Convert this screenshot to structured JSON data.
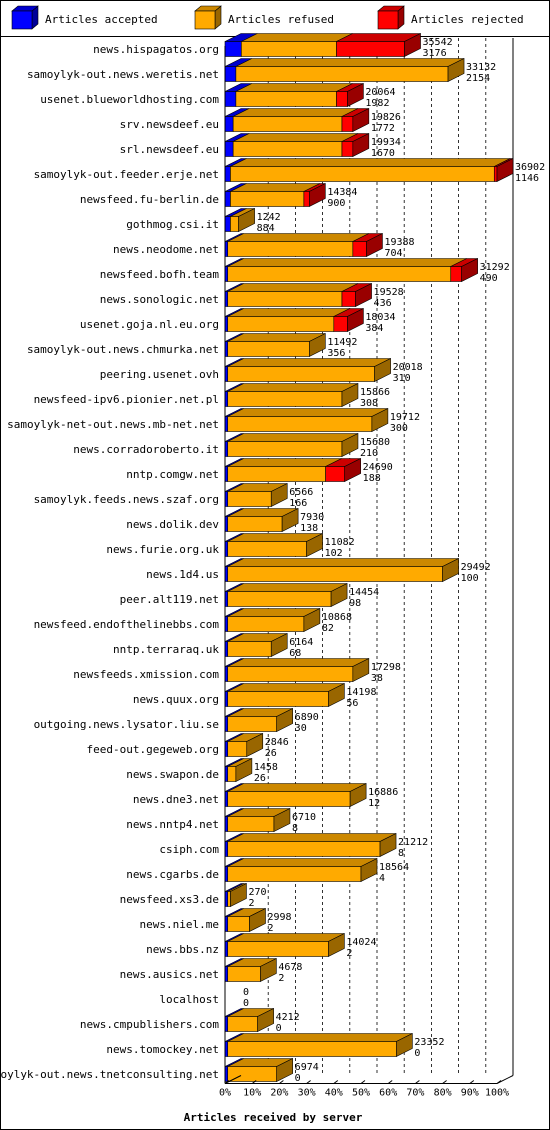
{
  "chart_data": {
    "type": "bar",
    "stacked": true,
    "orientation": "horizontal",
    "title": "Articles received by server",
    "legend_position": "top",
    "series": [
      {
        "name": "Articles accepted",
        "color": "#0000ff"
      },
      {
        "name": "Articles refused",
        "color": "#ffaa00"
      },
      {
        "name": "Articles rejected",
        "color": "#ff0000"
      }
    ],
    "x_ticks": [
      "0%",
      "10%",
      "20%",
      "30%",
      "40%",
      "50%",
      "60%",
      "70%",
      "80%",
      "90%",
      "100%"
    ],
    "xlim": [
      0,
      100
    ],
    "grid": "vertical dashed",
    "rows": [
      {
        "server": "news.hispagatos.org",
        "total": "35542",
        "second": "3176",
        "accepted_pct": 6,
        "refused_pct": 35,
        "rejected_pct": 25
      },
      {
        "server": "samoylyk-out.news.weretis.net",
        "total": "33132",
        "second": "2154",
        "accepted_pct": 4,
        "refused_pct": 78,
        "rejected_pct": 0
      },
      {
        "server": "usenet.blueworldhosting.com",
        "total": "20064",
        "second": "1982",
        "accepted_pct": 4,
        "refused_pct": 37,
        "rejected_pct": 4
      },
      {
        "server": "srv.newsdeef.eu",
        "total": "19826",
        "second": "1772",
        "accepted_pct": 3,
        "refused_pct": 40,
        "rejected_pct": 4
      },
      {
        "server": "srl.newsdeef.eu",
        "total": "19934",
        "second": "1670",
        "accepted_pct": 3,
        "refused_pct": 40,
        "rejected_pct": 4
      },
      {
        "server": "samoylyk-out.feeder.erje.net",
        "total": "36902",
        "second": "1146",
        "accepted_pct": 2,
        "refused_pct": 97,
        "rejected_pct": 1
      },
      {
        "server": "newsfeed.fu-berlin.de",
        "total": "14384",
        "second": "900",
        "accepted_pct": 2,
        "refused_pct": 27,
        "rejected_pct": 2
      },
      {
        "server": "gothmog.csi.it",
        "total": "1242",
        "second": "884",
        "accepted_pct": 2,
        "refused_pct": 3,
        "rejected_pct": 0
      },
      {
        "server": "news.neodome.net",
        "total": "19388",
        "second": "704",
        "accepted_pct": 1,
        "refused_pct": 46,
        "rejected_pct": 5
      },
      {
        "server": "newsfeed.bofh.team",
        "total": "31292",
        "second": "490",
        "accepted_pct": 1,
        "refused_pct": 82,
        "rejected_pct": 4
      },
      {
        "server": "news.sonologic.net",
        "total": "19528",
        "second": "436",
        "accepted_pct": 1,
        "refused_pct": 42,
        "rejected_pct": 5
      },
      {
        "server": "usenet.goja.nl.eu.org",
        "total": "18034",
        "second": "384",
        "accepted_pct": 1,
        "refused_pct": 39,
        "rejected_pct": 5
      },
      {
        "server": "samoylyk-out.news.chmurka.net",
        "total": "11492",
        "second": "356",
        "accepted_pct": 1,
        "refused_pct": 30,
        "rejected_pct": 0
      },
      {
        "server": "peering.usenet.ovh",
        "total": "20018",
        "second": "310",
        "accepted_pct": 1,
        "refused_pct": 54,
        "rejected_pct": 0
      },
      {
        "server": "newsfeed-ipv6.pionier.net.pl",
        "total": "15866",
        "second": "308",
        "accepted_pct": 1,
        "refused_pct": 42,
        "rejected_pct": 0
      },
      {
        "server": "samoylyk-net-out.news.mb-net.net",
        "total": "19712",
        "second": "300",
        "accepted_pct": 1,
        "refused_pct": 53,
        "rejected_pct": 0
      },
      {
        "server": "news.corradoroberto.it",
        "total": "15680",
        "second": "210",
        "accepted_pct": 1,
        "refused_pct": 42,
        "rejected_pct": 0
      },
      {
        "server": "nntp.comgw.net",
        "total": "24690",
        "second": "188",
        "accepted_pct": 1,
        "refused_pct": 36,
        "rejected_pct": 7
      },
      {
        "server": "samoylyk.feeds.news.szaf.org",
        "total": "6566",
        "second": "166",
        "accepted_pct": 1,
        "refused_pct": 16,
        "rejected_pct": 0
      },
      {
        "server": "news.dolik.dev",
        "total": "7930",
        "second": "138",
        "accepted_pct": 1,
        "refused_pct": 20,
        "rejected_pct": 0
      },
      {
        "server": "news.furie.org.uk",
        "total": "11082",
        "second": "102",
        "accepted_pct": 1,
        "refused_pct": 29,
        "rejected_pct": 0
      },
      {
        "server": "news.1d4.us",
        "total": "29492",
        "second": "100",
        "accepted_pct": 1,
        "refused_pct": 79,
        "rejected_pct": 0
      },
      {
        "server": "peer.alt119.net",
        "total": "14454",
        "second": "98",
        "accepted_pct": 1,
        "refused_pct": 38,
        "rejected_pct": 0
      },
      {
        "server": "newsfeed.endofthelinebbs.com",
        "total": "10868",
        "second": "82",
        "accepted_pct": 1,
        "refused_pct": 28,
        "rejected_pct": 0
      },
      {
        "server": "nntp.terraraq.uk",
        "total": "6164",
        "second": "68",
        "accepted_pct": 1,
        "refused_pct": 16,
        "rejected_pct": 0
      },
      {
        "server": "newsfeeds.xmission.com",
        "total": "17298",
        "second": "38",
        "accepted_pct": 1,
        "refused_pct": 46,
        "rejected_pct": 0
      },
      {
        "server": "news.quux.org",
        "total": "14198",
        "second": "56",
        "accepted_pct": 1,
        "refused_pct": 37,
        "rejected_pct": 0
      },
      {
        "server": "outgoing.news.lysator.liu.se",
        "total": "6890",
        "second": "30",
        "accepted_pct": 1,
        "refused_pct": 18,
        "rejected_pct": 0
      },
      {
        "server": "feed-out.gegeweb.org",
        "total": "2846",
        "second": "26",
        "accepted_pct": 1,
        "refused_pct": 7,
        "rejected_pct": 0
      },
      {
        "server": "news.swapon.de",
        "total": "1458",
        "second": "26",
        "accepted_pct": 1,
        "refused_pct": 3,
        "rejected_pct": 0
      },
      {
        "server": "news.dne3.net",
        "total": "16886",
        "second": "12",
        "accepted_pct": 1,
        "refused_pct": 45,
        "rejected_pct": 0
      },
      {
        "server": "news.nntp4.net",
        "total": "6710",
        "second": "8",
        "accepted_pct": 1,
        "refused_pct": 17,
        "rejected_pct": 0
      },
      {
        "server": "csiph.com",
        "total": "21212",
        "second": "8",
        "accepted_pct": 1,
        "refused_pct": 56,
        "rejected_pct": 0
      },
      {
        "server": "news.cgarbs.de",
        "total": "18564",
        "second": "4",
        "accepted_pct": 1,
        "refused_pct": 49,
        "rejected_pct": 0
      },
      {
        "server": "newsfeed.xs3.de",
        "total": "270",
        "second": "2",
        "accepted_pct": 1,
        "refused_pct": 1,
        "rejected_pct": 0
      },
      {
        "server": "news.niel.me",
        "total": "2998",
        "second": "2",
        "accepted_pct": 1,
        "refused_pct": 8,
        "rejected_pct": 0
      },
      {
        "server": "news.bbs.nz",
        "total": "14024",
        "second": "2",
        "accepted_pct": 1,
        "refused_pct": 37,
        "rejected_pct": 0
      },
      {
        "server": "news.ausics.net",
        "total": "4678",
        "second": "2",
        "accepted_pct": 1,
        "refused_pct": 12,
        "rejected_pct": 0
      },
      {
        "server": "localhost",
        "total": "0",
        "second": "0",
        "accepted_pct": 0,
        "refused_pct": 0,
        "rejected_pct": 0
      },
      {
        "server": "news.cmpublishers.com",
        "total": "4212",
        "second": "0",
        "accepted_pct": 1,
        "refused_pct": 11,
        "rejected_pct": 0
      },
      {
        "server": "news.tomockey.net",
        "total": "23352",
        "second": "0",
        "accepted_pct": 1,
        "refused_pct": 62,
        "rejected_pct": 0
      },
      {
        "server": "samoylyk-out.news.tnetconsulting.net",
        "total": "6974",
        "second": "0",
        "accepted_pct": 1,
        "refused_pct": 18,
        "rejected_pct": 0
      }
    ]
  }
}
